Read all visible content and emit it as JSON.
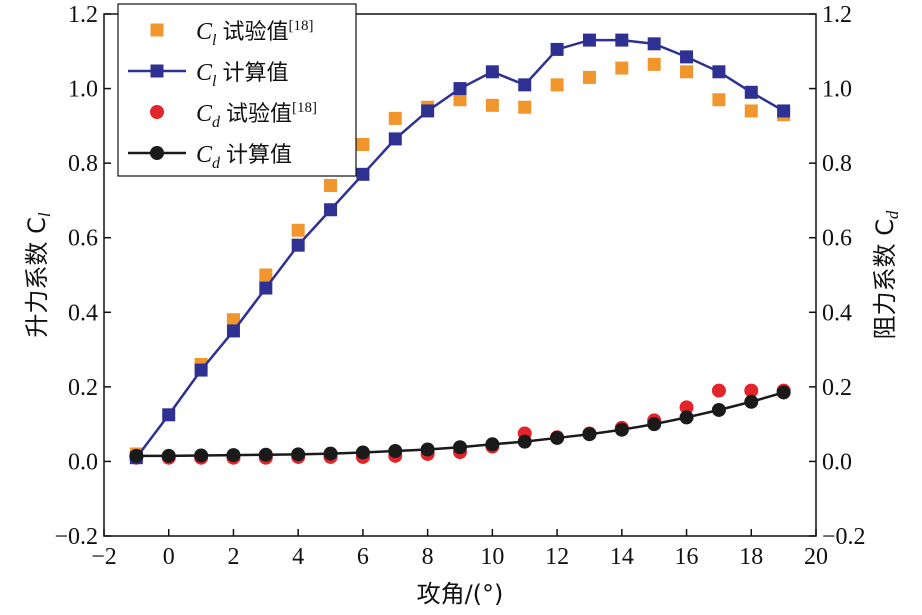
{
  "chart_data": {
    "type": "line",
    "xlabel": "攻角/(°)",
    "ylabel_left": "升力系数 C",
    "ylabel_left_sub": "l",
    "ylabel_right": "阻力系数 C",
    "ylabel_right_sub": "d",
    "xlim": [
      -2,
      20
    ],
    "ylim": [
      -0.2,
      1.2
    ],
    "x_ticks": [
      -2,
      0,
      2,
      4,
      6,
      8,
      10,
      12,
      14,
      16,
      18,
      20
    ],
    "x_tick_labels": [
      "−2",
      "0",
      "2",
      "4",
      "6",
      "8",
      "10",
      "12",
      "14",
      "16",
      "18",
      "20"
    ],
    "y_ticks": [
      -0.2,
      0.0,
      0.2,
      0.4,
      0.6,
      0.8,
      1.0,
      1.2
    ],
    "y_tick_labels": [
      "−0.2",
      "0.0",
      "0.2",
      "0.4",
      "0.6",
      "0.8",
      "1.0",
      "1.2"
    ],
    "grid": false,
    "legend_position": "top-left",
    "series": [
      {
        "name": "C_l 试验值[18]",
        "legend_symbol": "C",
        "legend_sub": "l",
        "legend_text": "试验值",
        "legend_ref": "[18]",
        "marker": "square",
        "line": false,
        "color": "#f0962d",
        "x": [
          -1,
          1,
          2,
          3,
          4,
          5,
          6,
          7,
          8,
          9,
          10,
          11,
          12,
          13,
          14,
          15,
          16,
          17,
          18,
          19
        ],
        "values": [
          0.02,
          0.26,
          0.38,
          0.5,
          0.62,
          0.74,
          0.85,
          0.92,
          0.95,
          0.97,
          0.955,
          0.95,
          1.01,
          1.03,
          1.055,
          1.065,
          1.045,
          0.97,
          0.94,
          0.93
        ]
      },
      {
        "name": "C_l 计算值",
        "legend_symbol": "C",
        "legend_sub": "l",
        "legend_text": "计算值",
        "legend_ref": "",
        "marker": "square",
        "line": true,
        "color": "#2e3192",
        "x": [
          -1,
          0,
          1,
          2,
          3,
          4,
          5,
          6,
          7,
          8,
          9,
          10,
          11,
          12,
          13,
          14,
          15,
          16,
          17,
          18,
          19
        ],
        "values": [
          0.01,
          0.125,
          0.245,
          0.35,
          0.465,
          0.58,
          0.675,
          0.77,
          0.865,
          0.94,
          1.0,
          1.045,
          1.01,
          1.105,
          1.13,
          1.13,
          1.12,
          1.085,
          1.045,
          0.99,
          0.94
        ]
      },
      {
        "name": "C_d 试验值[18]",
        "legend_symbol": "C",
        "legend_sub": "d",
        "legend_text": "试验值",
        "legend_ref": "[18]",
        "marker": "circle",
        "line": false,
        "color": "#e3242b",
        "x": [
          -1,
          0,
          1,
          2,
          3,
          4,
          5,
          6,
          7,
          8,
          9,
          10,
          11,
          12,
          13,
          14,
          15,
          16,
          17,
          18,
          19
        ],
        "values": [
          0.01,
          0.01,
          0.01,
          0.01,
          0.01,
          0.012,
          0.012,
          0.012,
          0.015,
          0.02,
          0.025,
          0.04,
          0.075,
          0.065,
          0.075,
          0.09,
          0.11,
          0.145,
          0.19,
          0.19,
          0.19
        ]
      },
      {
        "name": "C_d 计算值",
        "legend_symbol": "C",
        "legend_sub": "d",
        "legend_text": "计算值",
        "legend_ref": "",
        "marker": "circle",
        "line": true,
        "color": "#1a1a1a",
        "x": [
          -1,
          0,
          1,
          2,
          3,
          4,
          5,
          6,
          7,
          8,
          9,
          10,
          11,
          12,
          13,
          14,
          15,
          16,
          17,
          18,
          19
        ],
        "values": [
          0.015,
          0.015,
          0.016,
          0.017,
          0.018,
          0.019,
          0.021,
          0.024,
          0.028,
          0.032,
          0.038,
          0.046,
          0.053,
          0.063,
          0.073,
          0.085,
          0.1,
          0.118,
          0.138,
          0.16,
          0.185
        ]
      }
    ]
  }
}
